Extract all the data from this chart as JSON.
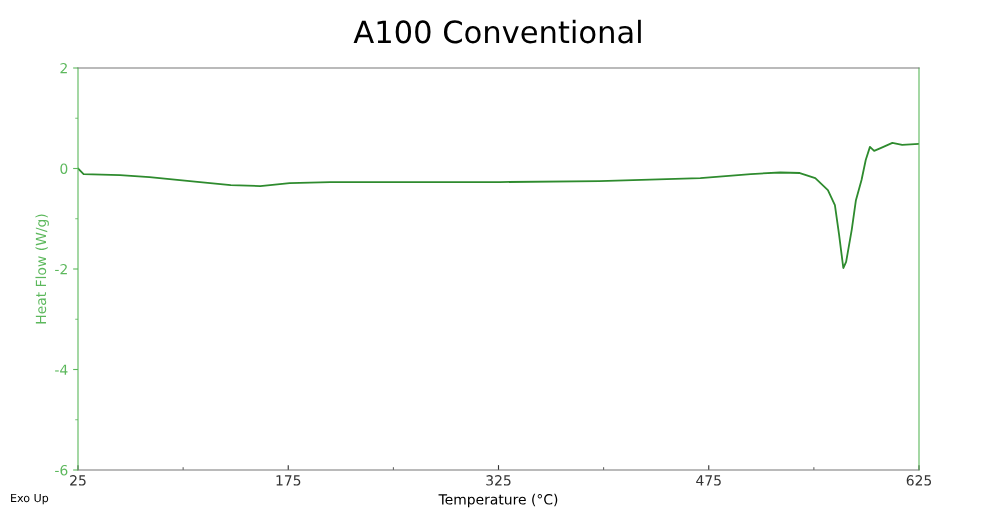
{
  "chart_data": {
    "type": "line",
    "title": "A100 Conventional",
    "xlabel": "Temperature (°C)",
    "ylabel": "Heat Flow (W/g)",
    "annotations": [
      "Exo Up"
    ],
    "series": [
      {
        "color": "#2e8b2e",
        "x": [
          25,
          29,
          55,
          76,
          112,
          134,
          155,
          176,
          205,
          255,
          326,
          397,
          469,
          505,
          526,
          540,
          551,
          560,
          565,
          568,
          571,
          573,
          577,
          580,
          584,
          587,
          590,
          593,
          598,
          606,
          613,
          625
        ],
        "values": [
          0,
          -0.11,
          -0.13,
          -0.17,
          -0.27,
          -0.33,
          -0.35,
          -0.29,
          -0.27,
          -0.27,
          -0.27,
          -0.25,
          -0.19,
          -0.11,
          -0.08,
          -0.09,
          -0.19,
          -0.43,
          -0.73,
          -1.32,
          -1.98,
          -1.86,
          -1.22,
          -0.63,
          -0.23,
          0.17,
          0.43,
          0.35,
          0.41,
          0.51,
          0.47,
          0.49
        ]
      }
    ],
    "xlim": [
      25,
      625
    ],
    "xticks": [
      25,
      175,
      325,
      475,
      625
    ],
    "ylim": [
      -6,
      2
    ],
    "yticks": [
      -6,
      -4,
      -2,
      0,
      2
    ],
    "grid": false,
    "legend": false,
    "marker": "none",
    "line_style": "solid"
  }
}
